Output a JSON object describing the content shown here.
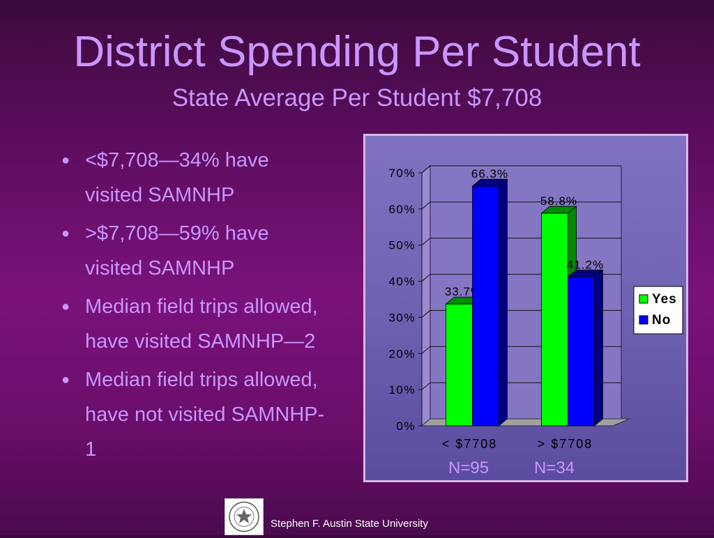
{
  "slide": {
    "title": "District Spending Per Student",
    "subtitle": "State Average Per Student $7,708",
    "bullets": [
      "<$7,708—34% have visited SAMNHP",
      ">$7,708—59% have visited SAMNHP",
      "Median field trips allowed, have visited SAMNHP—2",
      "Median field trips allowed, have not visited SAMNHP-1"
    ],
    "footer": "Stephen F. Austin State University",
    "logo_icon": "sfa-university-seal-icon"
  },
  "chart_data": {
    "type": "bar",
    "style": "3d-clustered-column",
    "categories": [
      "< $7708",
      "> $7708"
    ],
    "category_notes": [
      "N=95",
      "N=34"
    ],
    "series": [
      {
        "name": "Yes",
        "values": [
          33.7,
          58.8
        ],
        "labels": [
          "33.7%",
          "58.8%"
        ],
        "color": "#00ff00",
        "side_color": "#008a00"
      },
      {
        "name": "No",
        "values": [
          66.3,
          41.2
        ],
        "labels": [
          "66.3%",
          "41.2%"
        ],
        "color": "#0000ff",
        "side_color": "#000080"
      }
    ],
    "yticks": [
      "0%",
      "10%",
      "20%",
      "30%",
      "40%",
      "50%",
      "60%",
      "70%"
    ],
    "ylim": [
      0,
      70
    ],
    "grid": true,
    "legend_position": "right"
  }
}
